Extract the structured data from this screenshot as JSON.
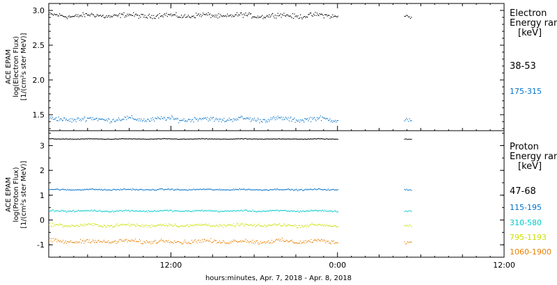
{
  "chart_data": [
    {
      "type": "scatter",
      "panel": "electron",
      "ylabel": [
        "ACE EPAM",
        "log(Electron Flux)",
        "[1/(cm²s ster MeV)]"
      ],
      "ylim": [
        1.27,
        3.1
      ],
      "yticks": [
        "3.0",
        "2.5",
        "2.0",
        "1.5"
      ],
      "legend_title": [
        "Electron",
        "Energy ran",
        "[keV]"
      ],
      "series": [
        {
          "name": "38-53",
          "color": "#000000",
          "mean": 2.93,
          "spread": 0.05
        },
        {
          "name": "175-315",
          "color": "#0070c8",
          "mean": 1.44,
          "spread": 0.05
        }
      ]
    },
    {
      "type": "scatter",
      "panel": "proton",
      "ylabel": [
        "ACE EPAM",
        "log(Proton Flux)",
        "[1/(cm²s ster MeV)]"
      ],
      "ylim": [
        -1.5,
        3.6
      ],
      "yticks": [
        "3",
        "2",
        "1",
        "0",
        "-1"
      ],
      "legend_title": [
        "Proton",
        "Energy ran",
        "[keV]"
      ],
      "series": [
        {
          "name": "47-68",
          "color": "#000000",
          "mean": 3.28,
          "spread": 0.02
        },
        {
          "name": "115-195",
          "color": "#0070c8",
          "mean": 1.24,
          "spread": 0.04
        },
        {
          "name": "310-580",
          "color": "#00c8c8",
          "mean": 0.38,
          "spread": 0.05
        },
        {
          "name": "795-1193",
          "color": "#c8e000",
          "mean": -0.2,
          "spread": 0.09
        },
        {
          "name": "1060-1900",
          "color": "#e88000",
          "mean": -0.85,
          "spread": 0.12
        }
      ]
    }
  ],
  "x_axis": {
    "label": "hours:minutes, Apr.  7, 2018 - Apr.  8, 2018",
    "range_hours": [
      3.2,
      36.0
    ],
    "ticks": [
      {
        "hour": 12,
        "label": "12:00"
      },
      {
        "hour": 24,
        "label": "0:00"
      },
      {
        "hour": 36,
        "label": "12:00"
      }
    ],
    "data_segments_hours": [
      [
        3.2,
        24.0
      ],
      [
        28.8,
        29.3
      ]
    ]
  }
}
